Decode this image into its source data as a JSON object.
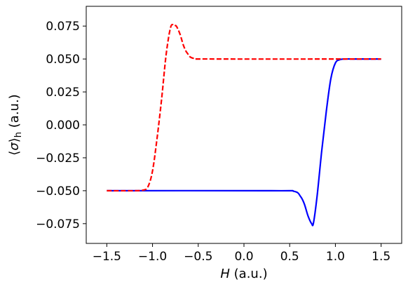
{
  "chart_data": {
    "type": "line",
    "title": "",
    "xlabel": "H (a.u.)",
    "xlabel_var": "H",
    "xlabel_unit": " (a.u.)",
    "ylabel": "⟨σ⟩h (a.u.)",
    "ylabel_open": "⟨",
    "ylabel_var": "σ",
    "ylabel_close": "⟩",
    "ylabel_sub": "h",
    "ylabel_unit": " (a.u.)",
    "xlim": [
      -1.725,
      1.725
    ],
    "ylim": [
      -0.09,
      0.09
    ],
    "xticks": [
      -1.5,
      -1.0,
      -0.5,
      0.0,
      0.5,
      1.0,
      1.5
    ],
    "xtick_labels": [
      "−1.5",
      "−1.0",
      "−0.5",
      "0.0",
      "0.5",
      "1.0",
      "1.5"
    ],
    "yticks": [
      0.075,
      0.05,
      0.025,
      0.0,
      -0.025,
      -0.05,
      -0.075
    ],
    "ytick_labels": [
      "0.075",
      "0.050",
      "0.025",
      "0.000",
      "−0.025",
      "−0.050",
      "−0.075"
    ],
    "grid": false,
    "series": [
      {
        "color": "#0000ff",
        "linestyle": "solid",
        "x": [
          -1.5,
          0.3,
          0.55,
          0.62,
          0.66,
          0.7,
          0.74,
          0.76,
          0.8,
          0.85,
          0.9,
          0.95,
          1.0,
          1.05,
          1.1,
          1.2,
          1.5
        ],
        "y": [
          -0.05,
          -0.05,
          -0.0505,
          -0.0545,
          -0.06,
          -0.069,
          -0.075,
          -0.0745,
          -0.054,
          -0.02,
          0.01,
          0.035,
          0.047,
          0.0495,
          0.05,
          0.05,
          0.05
        ]
      },
      {
        "color": "#ff0000",
        "linestyle": "dashed",
        "x": [
          -1.5,
          -1.2,
          -1.1,
          -1.05,
          -1.0,
          -0.95,
          -0.9,
          -0.85,
          -0.8,
          -0.76,
          -0.74,
          -0.7,
          -0.66,
          -0.62,
          -0.55,
          -0.3,
          1.5
        ],
        "y": [
          -0.05,
          -0.05,
          -0.0495,
          -0.047,
          -0.035,
          -0.01,
          0.02,
          0.054,
          0.0745,
          0.075,
          0.075,
          0.069,
          0.06,
          0.0545,
          0.0505,
          0.05,
          0.05
        ]
      }
    ]
  }
}
